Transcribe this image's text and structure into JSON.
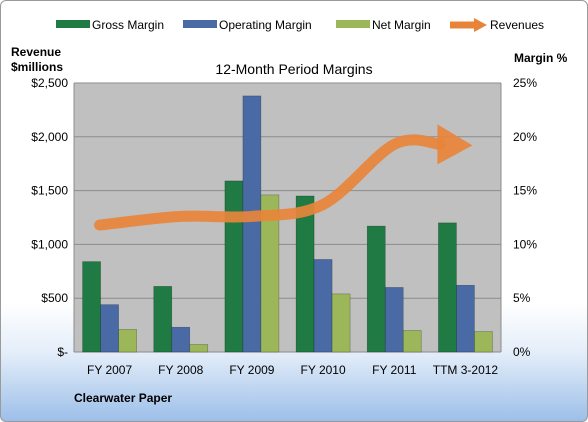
{
  "colors": {
    "gross_margin": "#1f7a43",
    "operating_margin": "#4a6aa5",
    "net_margin": "#9bb75a",
    "revenues": "#e8843a",
    "plot_background": "#c0c0c0"
  },
  "legend": {
    "gross": "Gross Margin",
    "operating": "Operating Margin",
    "net": "Net Margin",
    "revenues": "Revenues"
  },
  "left_axis_title_line1": "Revenue",
  "left_axis_title_line2": "$millions",
  "right_axis_title": "Margin %",
  "company": "Clearwater Paper",
  "chart_data": {
    "type": "bar",
    "title": "12-Month Period Margins",
    "categories": [
      "FY 2007",
      "FY 2008",
      "FY 2009",
      "FY 2010",
      "FY 2011",
      "TTM 3-2012"
    ],
    "series": [
      {
        "name": "Gross Margin",
        "axis": "left",
        "type": "bar",
        "values": [
          840,
          610,
          1590,
          1450,
          1170,
          1200
        ]
      },
      {
        "name": "Operating Margin",
        "axis": "left",
        "type": "bar",
        "values": [
          440,
          230,
          2380,
          860,
          600,
          620
        ]
      },
      {
        "name": "Net Margin",
        "axis": "left",
        "type": "bar",
        "values": [
          210,
          70,
          1460,
          540,
          200,
          190
        ]
      },
      {
        "name": "Revenues",
        "axis": "right",
        "type": "line-arrow",
        "values": [
          11.8,
          12.6,
          12.6,
          13.7,
          19.3,
          19.3
        ]
      }
    ],
    "left_axis": {
      "label": "Revenue $millions",
      "ylim": [
        0,
        2500
      ],
      "ticks": [
        "$-",
        "$500",
        "$1,000",
        "$1,500",
        "$2,000",
        "$2,500"
      ]
    },
    "right_axis": {
      "label": "Margin %",
      "ylim": [
        0,
        25
      ],
      "ticks": [
        "0%",
        "5%",
        "10%",
        "15%",
        "20%",
        "25%"
      ]
    },
    "grid": true,
    "legend_position": "top"
  }
}
